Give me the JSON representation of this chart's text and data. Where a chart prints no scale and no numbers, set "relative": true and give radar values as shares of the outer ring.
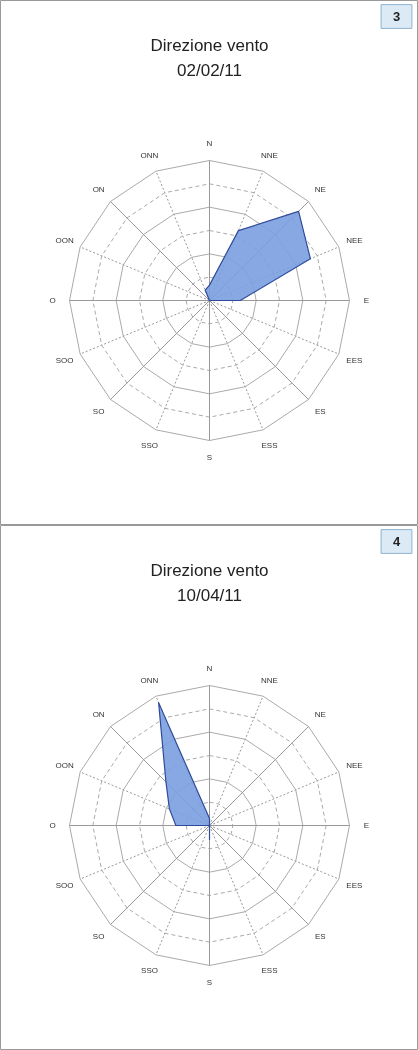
{
  "chart_data": [
    {
      "type": "radar",
      "title": "Direzione vento",
      "subtitle": "02/02/11",
      "annotations": [
        "3"
      ],
      "relative": true,
      "grid": true,
      "categories": [
        "N",
        "NNE",
        "NE",
        "NEE",
        "E",
        "EES",
        "ES",
        "ESS",
        "S",
        "SSO",
        "SO",
        "SOO",
        "O",
        "OON",
        "ON",
        "ONN"
      ],
      "series": [
        {
          "color": "#7b9ee0",
          "values": [
            0.11,
            0.54,
            0.9,
            0.78,
            0.22,
            0,
            0,
            0,
            0,
            0,
            0,
            0,
            0,
            0,
            0,
            0.08
          ]
        }
      ]
    },
    {
      "type": "radar",
      "title": "Direzione vento",
      "subtitle": "10/04/11",
      "annotations": [
        "4"
      ],
      "relative": true,
      "grid": true,
      "categories": [
        "N",
        "NNE",
        "NE",
        "NEE",
        "E",
        "EES",
        "ES",
        "ESS",
        "S",
        "SSO",
        "SO",
        "SOO",
        "O",
        "OON",
        "ON",
        "ONN"
      ],
      "series": [
        {
          "color": "#7b9ee0",
          "values": [
            0.05,
            0,
            0,
            0,
            0,
            0,
            0,
            0,
            0.1,
            0,
            0,
            0,
            0.24,
            0.31,
            0.44,
            0.95
          ]
        }
      ]
    }
  ]
}
